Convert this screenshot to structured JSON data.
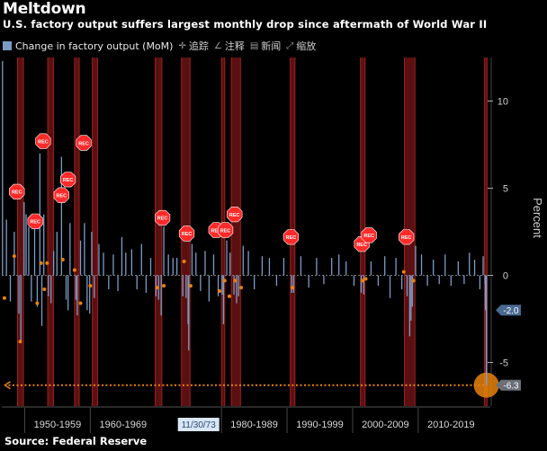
{
  "title": "Meltdown",
  "subtitle": "U.S. factory output suffers largest monthly drop since aftermath of World War II",
  "source": "Source: Federal Reserve",
  "toolbar": {
    "legend_label": "Change in factory output (MoM)",
    "tools": [
      {
        "label": "追踪",
        "icon": "crosshair-icon"
      },
      {
        "label": "注释",
        "icon": "pencil-icon"
      },
      {
        "label": "新闻",
        "icon": "news-icon"
      },
      {
        "label": "缩放",
        "icon": "zoom-icon"
      }
    ]
  },
  "colors": {
    "background": "#000000",
    "series": "#7a9cc6",
    "recession_band": "#5a1010",
    "recession_edge": "#a02020",
    "recession_badge": "#ff2a2a",
    "event_marker": "#e8820c",
    "baseline": "#7a7a7a",
    "label_last": "#4a6a92",
    "label_latest": "#6a6f78"
  },
  "chart_data": {
    "type": "bar",
    "series": [
      {
        "name": "Change in factory output (MoM)"
      }
    ],
    "xlim": [
      1946.5,
      2021.0
    ],
    "ylim": [
      -7.5,
      12.5
    ],
    "ylabel": "Percent",
    "y_ticks": [
      -5,
      0,
      5,
      10
    ],
    "y_tick_labels": [
      "-5",
      "0",
      "5",
      "10"
    ],
    "x_ranges": [
      {
        "label": "1950-1959",
        "from": 1950,
        "to": 1960
      },
      {
        "label": "1960-1969",
        "from": 1960,
        "to": 1970
      },
      {
        "label": "1980-1989",
        "from": 1980,
        "to": 1990
      },
      {
        "label": "1990-1999",
        "from": 1990,
        "to": 2000
      },
      {
        "label": "2000-2009",
        "from": 2000,
        "to": 2010
      },
      {
        "label": "2010-2019",
        "from": 2010,
        "to": 2020
      }
    ],
    "cursor_date": {
      "label": "11/30/73",
      "x": 1973.9
    },
    "recessions": [
      {
        "start": 1948.9,
        "end": 1949.8
      },
      {
        "start": 1953.5,
        "end": 1954.4
      },
      {
        "start": 1957.6,
        "end": 1958.3
      },
      {
        "start": 1960.3,
        "end": 1961.1
      },
      {
        "start": 1969.9,
        "end": 1970.9
      },
      {
        "start": 1973.9,
        "end": 1975.2
      },
      {
        "start": 1980.0,
        "end": 1980.5
      },
      {
        "start": 1981.5,
        "end": 1982.9
      },
      {
        "start": 1990.5,
        "end": 1991.2
      },
      {
        "start": 2001.2,
        "end": 2001.9
      },
      {
        "start": 2007.9,
        "end": 2009.5
      },
      {
        "start": 2020.1,
        "end": 2020.5
      }
    ],
    "recession_badge_label": "REC",
    "recession_badges": [
      {
        "x": 1948.8,
        "y": 4.8
      },
      {
        "x": 1951.6,
        "y": 3.1
      },
      {
        "x": 1952.8,
        "y": 7.7
      },
      {
        "x": 1955.6,
        "y": 4.6
      },
      {
        "x": 1956.6,
        "y": 5.5
      },
      {
        "x": 1959.0,
        "y": 7.6
      },
      {
        "x": 1971.0,
        "y": 3.3
      },
      {
        "x": 1974.7,
        "y": 2.4
      },
      {
        "x": 1979.2,
        "y": 2.6
      },
      {
        "x": 1980.6,
        "y": 2.6
      },
      {
        "x": 1982.0,
        "y": 3.5
      },
      {
        "x": 1990.6,
        "y": 2.2
      },
      {
        "x": 2001.4,
        "y": 1.8
      },
      {
        "x": 2002.5,
        "y": 2.3
      },
      {
        "x": 2008.2,
        "y": 2.2
      }
    ],
    "bars": [
      {
        "x": 1946.6,
        "y": 12.3
      },
      {
        "x": 1947.2,
        "y": 3.2
      },
      {
        "x": 1947.8,
        "y": -1.5
      },
      {
        "x": 1948.4,
        "y": 2.5
      },
      {
        "x": 1949.1,
        "y": -2.2
      },
      {
        "x": 1949.4,
        "y": -3.8
      },
      {
        "x": 1949.9,
        "y": 4.2
      },
      {
        "x": 1950.2,
        "y": 3.5
      },
      {
        "x": 1950.6,
        "y": 2.8
      },
      {
        "x": 1951.0,
        "y": -1.5
      },
      {
        "x": 1951.5,
        "y": 3.2
      },
      {
        "x": 1951.9,
        "y": -1.8
      },
      {
        "x": 1952.3,
        "y": 7.0
      },
      {
        "x": 1952.6,
        "y": -2.9
      },
      {
        "x": 1952.9,
        "y": 3.5
      },
      {
        "x": 1953.6,
        "y": -1.2
      },
      {
        "x": 1954.0,
        "y": -1.6
      },
      {
        "x": 1954.4,
        "y": 1.4
      },
      {
        "x": 1954.9,
        "y": 2.5
      },
      {
        "x": 1955.6,
        "y": 6.8
      },
      {
        "x": 1956.3,
        "y": -1.4
      },
      {
        "x": 1956.6,
        "y": -2.0
      },
      {
        "x": 1956.9,
        "y": 3.0
      },
      {
        "x": 1957.8,
        "y": -1.4
      },
      {
        "x": 1958.0,
        "y": -2.3
      },
      {
        "x": 1958.5,
        "y": 2.0
      },
      {
        "x": 1959.1,
        "y": 3.0
      },
      {
        "x": 1959.5,
        "y": -2.0
      },
      {
        "x": 1959.9,
        "y": -2.2
      },
      {
        "x": 1960.2,
        "y": 2.5
      },
      {
        "x": 1960.6,
        "y": -1.3
      },
      {
        "x": 1961.3,
        "y": 1.8
      },
      {
        "x": 1962.0,
        "y": 1.3
      },
      {
        "x": 1962.8,
        "y": -0.8
      },
      {
        "x": 1963.5,
        "y": 1.2
      },
      {
        "x": 1964.2,
        "y": -0.9
      },
      {
        "x": 1964.8,
        "y": 2.2
      },
      {
        "x": 1965.4,
        "y": 1.3
      },
      {
        "x": 1966.3,
        "y": 1.5
      },
      {
        "x": 1967.1,
        "y": -0.8
      },
      {
        "x": 1967.8,
        "y": 1.8
      },
      {
        "x": 1968.5,
        "y": -1.0
      },
      {
        "x": 1969.2,
        "y": 1.0
      },
      {
        "x": 1970.0,
        "y": -1.2
      },
      {
        "x": 1970.4,
        "y": -1.4
      },
      {
        "x": 1970.8,
        "y": -2.3
      },
      {
        "x": 1971.2,
        "y": 2.8
      },
      {
        "x": 1971.9,
        "y": 1.2
      },
      {
        "x": 1972.6,
        "y": 1.0
      },
      {
        "x": 1973.2,
        "y": 1.0
      },
      {
        "x": 1974.1,
        "y": -1.2
      },
      {
        "x": 1974.6,
        "y": -1.3
      },
      {
        "x": 1974.9,
        "y": -2.8
      },
      {
        "x": 1975.0,
        "y": -4.3
      },
      {
        "x": 1975.5,
        "y": 1.8
      },
      {
        "x": 1976.1,
        "y": 1.3
      },
      {
        "x": 1976.8,
        "y": -0.9
      },
      {
        "x": 1977.5,
        "y": 1.4
      },
      {
        "x": 1978.1,
        "y": -1.5
      },
      {
        "x": 1978.8,
        "y": 1.2
      },
      {
        "x": 1979.5,
        "y": -1.2
      },
      {
        "x": 1980.1,
        "y": -1.1
      },
      {
        "x": 1980.3,
        "y": -2.8
      },
      {
        "x": 1980.8,
        "y": 2.0
      },
      {
        "x": 1981.3,
        "y": 1.3
      },
      {
        "x": 1981.9,
        "y": -1.1
      },
      {
        "x": 1982.3,
        "y": -1.6
      },
      {
        "x": 1982.6,
        "y": -1.2
      },
      {
        "x": 1983.3,
        "y": 1.7
      },
      {
        "x": 1984.1,
        "y": 1.4
      },
      {
        "x": 1985.0,
        "y": -0.8
      },
      {
        "x": 1986.2,
        "y": 1.1
      },
      {
        "x": 1987.3,
        "y": 1.0
      },
      {
        "x": 1988.4,
        "y": -0.6
      },
      {
        "x": 1989.5,
        "y": 1.0
      },
      {
        "x": 1990.7,
        "y": -1.0
      },
      {
        "x": 1991.0,
        "y": -1.0
      },
      {
        "x": 1992.1,
        "y": 1.1
      },
      {
        "x": 1993.3,
        "y": -0.7
      },
      {
        "x": 1994.5,
        "y": 1.0
      },
      {
        "x": 1995.6,
        "y": -0.5
      },
      {
        "x": 1996.8,
        "y": 1.0
      },
      {
        "x": 1997.9,
        "y": 1.2
      },
      {
        "x": 1999.0,
        "y": 0.8
      },
      {
        "x": 2000.2,
        "y": -0.6
      },
      {
        "x": 2001.3,
        "y": -1.0
      },
      {
        "x": 2001.7,
        "y": -1.1
      },
      {
        "x": 2002.8,
        "y": 0.8
      },
      {
        "x": 2003.9,
        "y": -0.6
      },
      {
        "x": 2004.9,
        "y": 1.1
      },
      {
        "x": 2005.7,
        "y": -1.3
      },
      {
        "x": 2006.6,
        "y": 1.0
      },
      {
        "x": 2007.5,
        "y": -0.8
      },
      {
        "x": 2008.3,
        "y": -1.2
      },
      {
        "x": 2008.7,
        "y": -3.5
      },
      {
        "x": 2008.9,
        "y": -2.6
      },
      {
        "x": 2009.1,
        "y": -1.8
      },
      {
        "x": 2009.6,
        "y": 1.7
      },
      {
        "x": 2010.5,
        "y": 1.2
      },
      {
        "x": 2011.4,
        "y": -0.6
      },
      {
        "x": 2012.3,
        "y": 0.9
      },
      {
        "x": 2013.2,
        "y": -0.5
      },
      {
        "x": 2014.1,
        "y": 1.2
      },
      {
        "x": 2015.0,
        "y": -0.6
      },
      {
        "x": 2016.1,
        "y": 0.8
      },
      {
        "x": 2017.0,
        "y": -0.5
      },
      {
        "x": 2017.8,
        "y": 1.3
      },
      {
        "x": 2018.6,
        "y": 0.9
      },
      {
        "x": 2019.4,
        "y": -0.8
      },
      {
        "x": 2019.9,
        "y": 1.1
      },
      {
        "x": 2020.2,
        "y": -0.5
      },
      {
        "x": 2020.25,
        "y": -2.0
      },
      {
        "x": 2020.4,
        "y": -6.3
      }
    ],
    "event_markers": [
      {
        "x": 1946.9,
        "y": -1.3
      },
      {
        "x": 1948.4,
        "y": 1.1
      },
      {
        "x": 1949.3,
        "y": -3.8
      },
      {
        "x": 1951.9,
        "y": -1.6
      },
      {
        "x": 1952.5,
        "y": 0.7
      },
      {
        "x": 1953.0,
        "y": -0.8
      },
      {
        "x": 1953.4,
        "y": 0.7
      },
      {
        "x": 1955.8,
        "y": 0.9
      },
      {
        "x": 1957.6,
        "y": 0.3
      },
      {
        "x": 1958.5,
        "y": -1.6
      },
      {
        "x": 1960.0,
        "y": -0.6
      },
      {
        "x": 1970.2,
        "y": -0.7
      },
      {
        "x": 1971.2,
        "y": -0.6
      },
      {
        "x": 1974.3,
        "y": 0.8
      },
      {
        "x": 1975.3,
        "y": -0.6
      },
      {
        "x": 1979.7,
        "y": -0.9
      },
      {
        "x": 1980.5,
        "y": -0.3
      },
      {
        "x": 1981.2,
        "y": -1.2
      },
      {
        "x": 1982.1,
        "y": -0.3
      },
      {
        "x": 1983.0,
        "y": -0.7
      },
      {
        "x": 1990.8,
        "y": -0.7
      },
      {
        "x": 2001.5,
        "y": -0.3
      },
      {
        "x": 2002.0,
        "y": -0.2
      },
      {
        "x": 2007.8,
        "y": 0.2
      },
      {
        "x": 2009.3,
        "y": -0.3
      }
    ],
    "target_line": {
      "from_x": 1946.7,
      "to_x": 2020.4,
      "y": -6.3
    },
    "last_label": {
      "value": "-2.0",
      "y": -2.0
    },
    "latest_label": {
      "value": "-6.3",
      "y": -6.3
    }
  }
}
